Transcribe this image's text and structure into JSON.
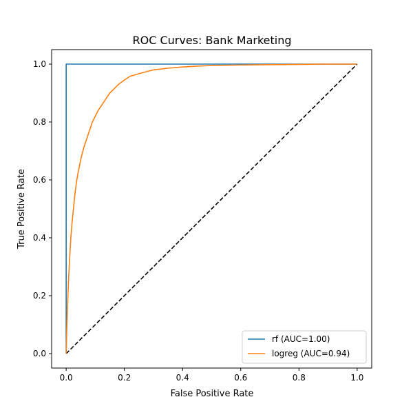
{
  "chart_data": {
    "type": "line",
    "title": "ROC Curves: Bank Marketing",
    "xlabel": "False Positive Rate",
    "ylabel": "True Positive Rate",
    "xlim": [
      -0.05,
      1.05
    ],
    "ylim": [
      -0.05,
      1.05
    ],
    "xticks": [
      {
        "value": 0.0,
        "label": "0.0"
      },
      {
        "value": 0.2,
        "label": "0.2"
      },
      {
        "value": 0.4,
        "label": "0.4"
      },
      {
        "value": 0.6,
        "label": "0.6"
      },
      {
        "value": 0.8,
        "label": "0.8"
      },
      {
        "value": 1.0,
        "label": "1.0"
      }
    ],
    "yticks": [
      {
        "value": 0.0,
        "label": "0.0"
      },
      {
        "value": 0.2,
        "label": "0.2"
      },
      {
        "value": 0.4,
        "label": "0.4"
      },
      {
        "value": 0.6,
        "label": "0.6"
      },
      {
        "value": 0.8,
        "label": "0.8"
      },
      {
        "value": 1.0,
        "label": "1.0"
      }
    ],
    "grid": false,
    "legend_position": "lower-right",
    "series": [
      {
        "name": "rf (AUC=1.00)",
        "color": "#1f77b4",
        "x": [
          0.0,
          0.0,
          0.0,
          1.0
        ],
        "y": [
          0.0,
          0.999,
          1.0,
          1.0
        ]
      },
      {
        "name": "logreg (AUC=0.94)",
        "color": "#ff7f0e",
        "x": [
          0.0,
          0.002,
          0.005,
          0.008,
          0.012,
          0.016,
          0.02,
          0.025,
          0.03,
          0.035,
          0.04,
          0.05,
          0.06,
          0.07,
          0.08,
          0.09,
          0.1,
          0.11,
          0.12,
          0.13,
          0.14,
          0.15,
          0.16,
          0.17,
          0.18,
          0.2,
          0.22,
          0.25,
          0.28,
          0.3,
          0.35,
          0.4,
          0.45,
          0.5,
          0.6,
          0.7,
          0.8,
          0.9,
          1.0
        ],
        "y": [
          0.0,
          0.08,
          0.17,
          0.25,
          0.33,
          0.4,
          0.45,
          0.5,
          0.55,
          0.59,
          0.62,
          0.67,
          0.71,
          0.74,
          0.77,
          0.8,
          0.82,
          0.84,
          0.855,
          0.87,
          0.885,
          0.9,
          0.91,
          0.92,
          0.93,
          0.945,
          0.958,
          0.967,
          0.975,
          0.98,
          0.986,
          0.99,
          0.993,
          0.995,
          0.997,
          0.998,
          0.999,
          1.0,
          1.0
        ]
      },
      {
        "name": "",
        "color": "#000000",
        "dashed": true,
        "x": [
          0.0,
          1.0
        ],
        "y": [
          0.0,
          1.0
        ]
      }
    ]
  }
}
